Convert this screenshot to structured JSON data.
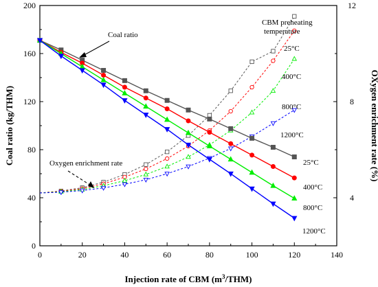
{
  "chart_data": {
    "type": "line",
    "xlabel": "Injection rate of CBM (m³/THM)",
    "ylabel": "Coal ratio (kg/THM)",
    "y2label": "OXygen enrichment rate (%)",
    "xlim": [
      0,
      140
    ],
    "ylim": [
      0,
      200
    ],
    "y2lim": [
      2,
      12
    ],
    "xticks": [
      0,
      20,
      40,
      60,
      80,
      100,
      120,
      140
    ],
    "yticks": [
      0,
      40,
      80,
      120,
      160,
      200
    ],
    "y2ticks": [
      4,
      8,
      12
    ],
    "grid": false,
    "x": [
      0,
      10,
      20,
      30,
      40,
      50,
      60,
      70,
      80,
      90,
      100,
      110,
      120
    ],
    "legend_title": "CBM preheating temperature",
    "annotations": {
      "coal_ratio": "Coal ratio",
      "oxygen_rate": "Oxygen enrichment rate"
    },
    "coal_series": [
      {
        "name": "25°C",
        "color": "#555555",
        "marker": "square",
        "values": [
          171,
          163,
          154.5,
          146,
          137.5,
          129,
          121,
          113,
          105.5,
          97.5,
          89.5,
          82,
          74
        ]
      },
      {
        "name": "400°C",
        "color": "#ff0000",
        "marker": "circle",
        "values": [
          171,
          161,
          152,
          142,
          132,
          123,
          114,
          104,
          94.5,
          85,
          75.5,
          66,
          56.5
        ]
      },
      {
        "name": "800°C",
        "color": "#00ee00",
        "marker": "triangle-up",
        "values": [
          171,
          160,
          149,
          138,
          127,
          116,
          105,
          94,
          83,
          72,
          61,
          50,
          39.5
        ]
      },
      {
        "name": "1200°C",
        "color": "#0000ff",
        "marker": "triangle-down",
        "values": [
          171,
          158,
          146,
          134,
          121,
          109,
          97,
          84,
          72,
          60,
          47.5,
          35,
          23
        ]
      }
    ],
    "oxygen_series": [
      {
        "name": "25°C",
        "color": "#555555",
        "marker": "square",
        "values": [
          4.2,
          4.28,
          4.42,
          4.65,
          4.97,
          5.38,
          5.91,
          6.59,
          7.43,
          8.45,
          9.66,
          10.1,
          11.55
        ]
      },
      {
        "name": "400°C",
        "color": "#ff0000",
        "marker": "circle",
        "values": [
          4.2,
          4.27,
          4.38,
          4.58,
          4.86,
          5.2,
          5.63,
          6.15,
          6.8,
          7.6,
          8.6,
          9.7,
          10.95
        ]
      },
      {
        "name": "800°C",
        "color": "#00ee00",
        "marker": "triangle-up",
        "values": [
          4.2,
          4.25,
          4.34,
          4.5,
          4.71,
          4.97,
          5.3,
          5.7,
          6.2,
          6.8,
          7.55,
          8.45,
          9.78
        ]
      },
      {
        "name": "1200°C",
        "color": "#0000ff",
        "marker": "triangle-down",
        "values": [
          4.2,
          4.23,
          4.3,
          4.41,
          4.56,
          4.75,
          5.0,
          5.3,
          5.65,
          6.05,
          6.55,
          7.1,
          7.65
        ]
      }
    ]
  }
}
